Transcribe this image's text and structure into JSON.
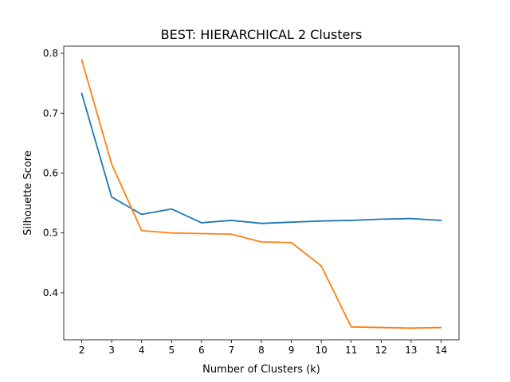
{
  "chart_data": {
    "type": "line",
    "title": "BEST: HIERARCHICAL  2 Clusters",
    "xlabel": "Number of Clusters (k)",
    "ylabel": "Silhouette Score",
    "x": [
      2,
      3,
      4,
      5,
      6,
      7,
      8,
      9,
      10,
      11,
      12,
      13,
      14
    ],
    "xlim": [
      1.4,
      14.6
    ],
    "ylim": [
      0.3215,
      0.812
    ],
    "xticks": [
      "2",
      "3",
      "4",
      "5",
      "6",
      "7",
      "8",
      "9",
      "10",
      "11",
      "12",
      "13",
      "14"
    ],
    "yticks": [
      "0.4",
      "0.5",
      "0.6",
      "0.7",
      "0.8"
    ],
    "grid": false,
    "series": [
      {
        "color": "#1f77b4",
        "values": [
          0.733,
          0.56,
          0.531,
          0.54,
          0.517,
          0.521,
          0.516,
          0.518,
          0.52,
          0.521,
          0.523,
          0.524,
          0.521
        ]
      },
      {
        "color": "#ff7f0e",
        "values": [
          0.789,
          0.615,
          0.504,
          0.5,
          0.499,
          0.498,
          0.485,
          0.484,
          0.445,
          0.343,
          0.342,
          0.341,
          0.342
        ]
      }
    ]
  }
}
